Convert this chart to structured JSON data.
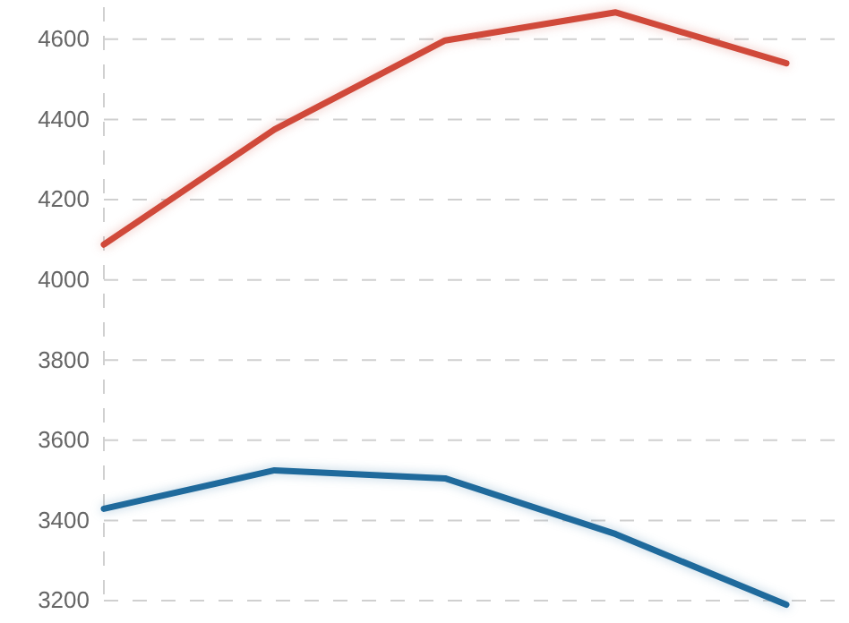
{
  "chart_data": {
    "type": "line",
    "categories": [
      null,
      null,
      null,
      null,
      null
    ],
    "ylim": [
      3180,
      4680
    ],
    "yticks": [
      3200,
      3400,
      3600,
      3800,
      4000,
      4200,
      4400,
      4600
    ],
    "grid": "y",
    "tick_labels": "y",
    "line_style": "solid",
    "series": [
      {
        "color": "#d0493a",
        "values": [
          4088,
          4375,
          4597,
          4667,
          4540
        ]
      },
      {
        "color": "#1f6a9c",
        "values": [
          3429,
          3525,
          3505,
          3366,
          3190
        ]
      }
    ]
  }
}
